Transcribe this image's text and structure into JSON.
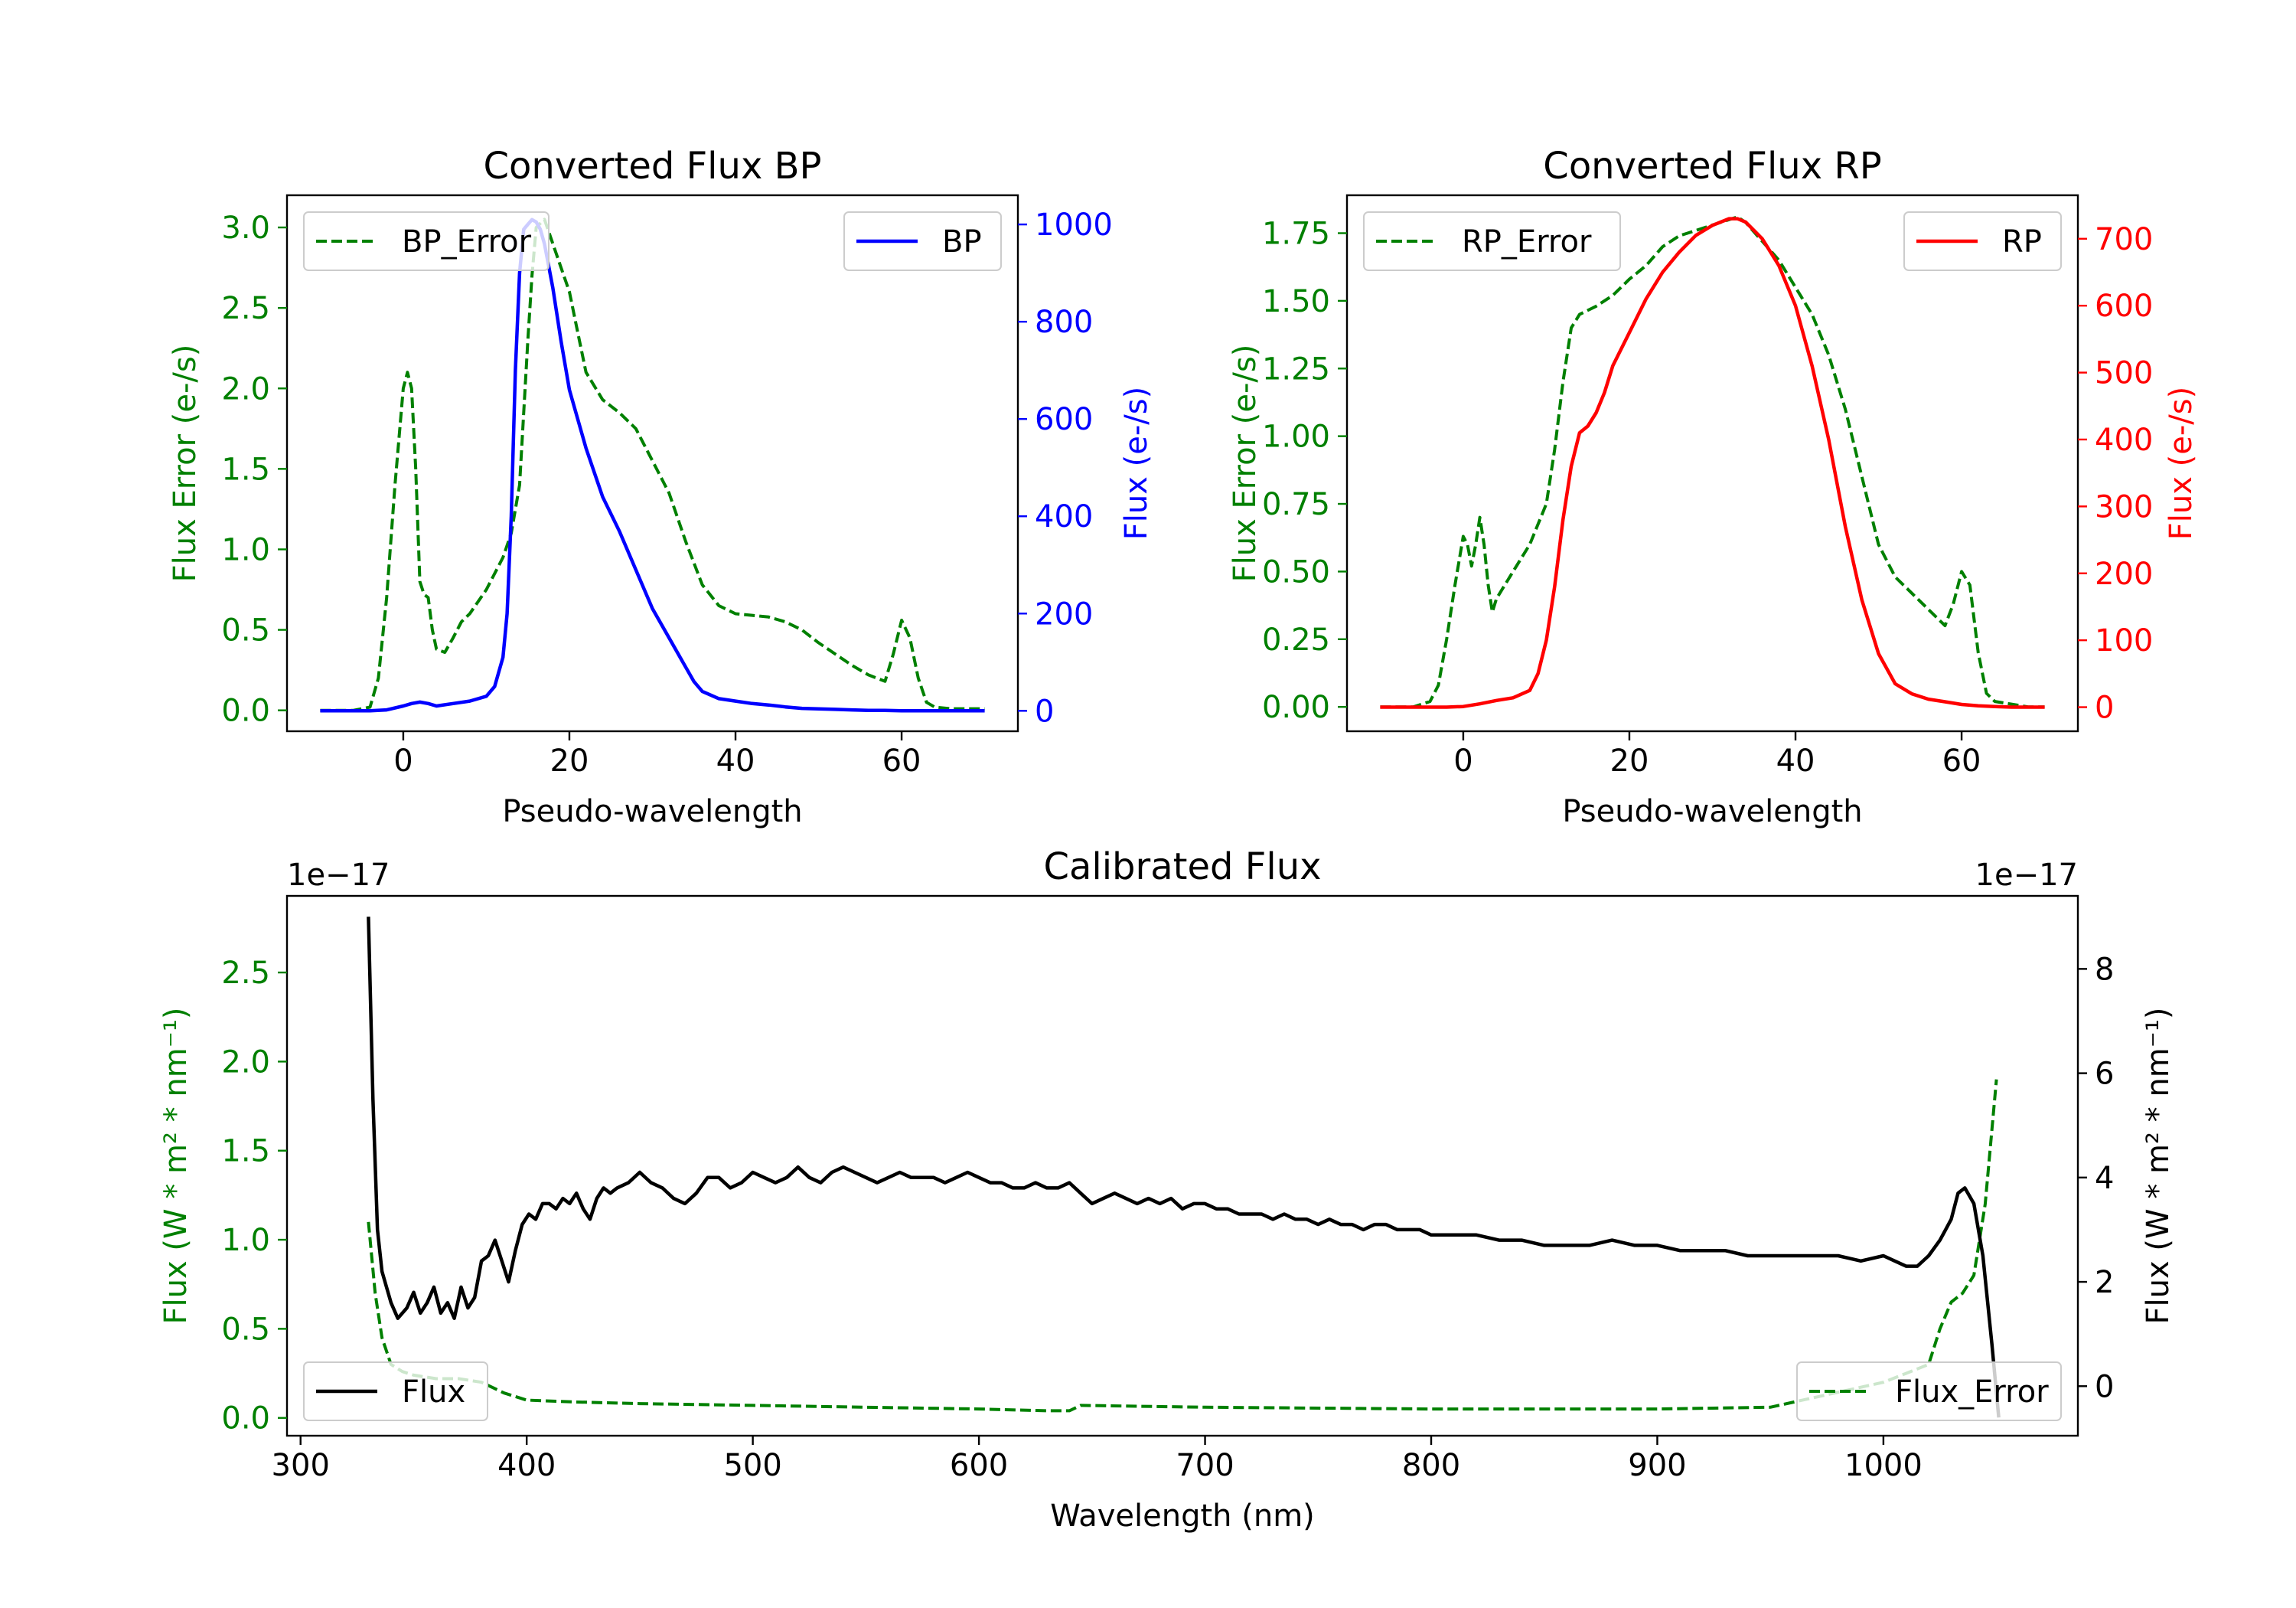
{
  "colors": {
    "green": "#008000",
    "blue": "#0000ff",
    "red": "#ff0000",
    "black": "#000000"
  },
  "chart_data": [
    {
      "id": "bp",
      "type": "line",
      "title": "Converted Flux BP",
      "xlabel": "Pseudo-wavelength",
      "ylabel_left": "Flux Error (e-/s)",
      "ylabel_right": "Flux (e-/s)",
      "xlim": [
        -14,
        74
      ],
      "ylim_left": [
        -0.13,
        3.2
      ],
      "ylim_right": [
        -42,
        1060
      ],
      "xticks": [
        0,
        20,
        40,
        60
      ],
      "yticks_left": [
        0.0,
        0.5,
        1.0,
        1.5,
        2.0,
        2.5,
        3.0
      ],
      "yticks_left_labels": [
        "0.0",
        "0.5",
        "1.0",
        "1.5",
        "2.0",
        "2.5",
        "3.0"
      ],
      "yticks_right": [
        0,
        200,
        400,
        600,
        800,
        1000
      ],
      "yticks_right_labels": [
        "0",
        "200",
        "400",
        "600",
        "800",
        "1000"
      ],
      "legend_left": "BP_Error",
      "legend_right": "BP",
      "series_error": {
        "name": "BP_Error",
        "axis": "left",
        "color": "#008000",
        "style": "dashed",
        "x": [
          -10,
          -8,
          -6,
          -4,
          -3,
          -2,
          -1,
          0,
          0.5,
          1,
          1.5,
          2,
          2.5,
          3,
          3.5,
          4,
          5,
          6,
          7,
          8,
          10,
          12,
          13,
          14,
          15,
          15.5,
          16,
          17,
          18,
          19,
          20,
          21,
          22,
          24,
          26,
          28,
          30,
          32,
          34,
          36,
          38,
          40,
          42,
          44,
          46,
          48,
          50,
          52,
          54,
          56,
          58,
          59,
          60,
          61,
          62,
          63,
          64,
          66,
          68,
          70
        ],
        "y": [
          0.0,
          0.0,
          0.0,
          0.02,
          0.2,
          0.7,
          1.4,
          2.0,
          2.1,
          2.0,
          1.5,
          0.8,
          0.72,
          0.7,
          0.5,
          0.38,
          0.36,
          0.45,
          0.55,
          0.6,
          0.75,
          0.95,
          1.1,
          1.4,
          2.3,
          2.7,
          3.0,
          3.05,
          2.9,
          2.75,
          2.6,
          2.35,
          2.1,
          1.93,
          1.85,
          1.75,
          1.55,
          1.35,
          1.05,
          0.78,
          0.65,
          0.6,
          0.59,
          0.58,
          0.55,
          0.5,
          0.42,
          0.35,
          0.28,
          0.22,
          0.18,
          0.35,
          0.56,
          0.45,
          0.2,
          0.05,
          0.02,
          0.01,
          0.01,
          0.01
        ]
      },
      "series_flux": {
        "name": "BP",
        "axis": "right",
        "color": "#0000ff",
        "style": "solid",
        "x": [
          -10,
          -6,
          -4,
          -2,
          0,
          1,
          2,
          3,
          4,
          6,
          8,
          10,
          11,
          12,
          12.5,
          13,
          13.5,
          14,
          14.5,
          15,
          15.5,
          16,
          16.5,
          17,
          18,
          19,
          20,
          22,
          24,
          26,
          28,
          30,
          32,
          34,
          35,
          36,
          38,
          40,
          42,
          44,
          46,
          48,
          50,
          52,
          54,
          56,
          58,
          60,
          62,
          64,
          66,
          68,
          70
        ],
        "y": [
          0,
          0,
          0,
          2,
          10,
          15,
          18,
          15,
          10,
          15,
          20,
          30,
          50,
          110,
          200,
          400,
          700,
          900,
          990,
          1000,
          1010,
          1005,
          990,
          960,
          870,
          760,
          660,
          540,
          440,
          370,
          290,
          210,
          150,
          90,
          60,
          40,
          25,
          20,
          15,
          12,
          8,
          5,
          4,
          3,
          2,
          1,
          1,
          0,
          0,
          0,
          0,
          0,
          0
        ]
      }
    },
    {
      "id": "rp",
      "type": "line",
      "title": "Converted Flux RP",
      "xlabel": "Pseudo-wavelength",
      "ylabel_left": "Flux Error (e-/s)",
      "ylabel_right": "Flux (e-/s)",
      "xlim": [
        -14,
        74
      ],
      "ylim_left": [
        -0.09,
        1.89
      ],
      "ylim_right": [
        -36,
        765
      ],
      "xticks": [
        0,
        20,
        40,
        60
      ],
      "yticks_left": [
        0.0,
        0.25,
        0.5,
        0.75,
        1.0,
        1.25,
        1.5,
        1.75
      ],
      "yticks_left_labels": [
        "0.00",
        "0.25",
        "0.50",
        "0.75",
        "1.00",
        "1.25",
        "1.50",
        "1.75"
      ],
      "yticks_right": [
        0,
        100,
        200,
        300,
        400,
        500,
        600,
        700
      ],
      "yticks_right_labels": [
        "0",
        "100",
        "200",
        "300",
        "400",
        "500",
        "600",
        "700"
      ],
      "legend_left": "RP_Error",
      "legend_right": "RP",
      "series_error": {
        "name": "RP_Error",
        "axis": "left",
        "color": "#008000",
        "style": "dashed",
        "x": [
          -10,
          -6,
          -4,
          -3,
          -2,
          -1,
          0,
          0.5,
          1,
          1.5,
          2,
          2.5,
          3,
          3.5,
          4,
          5,
          6,
          8,
          10,
          11,
          12,
          13,
          14,
          16,
          18,
          20,
          22,
          24,
          26,
          28,
          30,
          32,
          33,
          34,
          36,
          38,
          40,
          42,
          44,
          46,
          48,
          50,
          52,
          54,
          56,
          57,
          58,
          59,
          60,
          61,
          62,
          63,
          64,
          66,
          68,
          70
        ],
        "y": [
          0.0,
          0.0,
          0.02,
          0.08,
          0.25,
          0.45,
          0.63,
          0.6,
          0.52,
          0.6,
          0.7,
          0.6,
          0.45,
          0.35,
          0.4,
          0.45,
          0.5,
          0.6,
          0.75,
          0.95,
          1.2,
          1.4,
          1.45,
          1.48,
          1.52,
          1.58,
          1.63,
          1.7,
          1.74,
          1.76,
          1.78,
          1.8,
          1.81,
          1.79,
          1.72,
          1.65,
          1.55,
          1.45,
          1.3,
          1.1,
          0.85,
          0.6,
          0.48,
          0.42,
          0.36,
          0.33,
          0.3,
          0.38,
          0.5,
          0.45,
          0.2,
          0.05,
          0.02,
          0.01,
          0.0,
          0.0
        ]
      },
      "series_flux": {
        "name": "RP",
        "axis": "right",
        "color": "#ff0000",
        "style": "solid",
        "x": [
          -10,
          -6,
          -4,
          -2,
          0,
          2,
          4,
          6,
          8,
          9,
          10,
          11,
          12,
          13,
          14,
          15,
          16,
          17,
          18,
          20,
          22,
          24,
          26,
          28,
          30,
          32,
          33,
          34,
          36,
          38,
          40,
          42,
          44,
          46,
          48,
          50,
          52,
          54,
          56,
          58,
          60,
          62,
          64,
          66,
          68,
          70
        ],
        "y": [
          0,
          0,
          0,
          0,
          1,
          5,
          10,
          14,
          25,
          50,
          100,
          180,
          280,
          360,
          410,
          420,
          440,
          470,
          510,
          560,
          610,
          650,
          680,
          705,
          720,
          730,
          730,
          725,
          700,
          660,
          600,
          510,
          400,
          270,
          160,
          80,
          35,
          20,
          12,
          8,
          4,
          2,
          1,
          0,
          0,
          0
        ]
      }
    },
    {
      "id": "cal",
      "type": "line",
      "title": "Calibrated Flux",
      "xlabel": "Wavelength (nm)",
      "ylabel_left": "Flux (W * m² * nm⁻¹)",
      "ylabel_right": "Flux (W * m² * nm⁻¹)",
      "offset_left": "1e−17",
      "offset_right": "1e−17",
      "xlim": [
        294,
        1086
      ],
      "ylim_left": [
        -0.1,
        2.93
      ],
      "ylim_right": [
        -0.95,
        9.4
      ],
      "xticks": [
        300,
        400,
        500,
        600,
        700,
        800,
        900,
        1000
      ],
      "yticks_left": [
        0.0,
        0.5,
        1.0,
        1.5,
        2.0,
        2.5
      ],
      "yticks_left_labels": [
        "0.0",
        "0.5",
        "1.0",
        "1.5",
        "2.0",
        "2.5"
      ],
      "yticks_right": [
        0,
        2,
        4,
        6,
        8
      ],
      "yticks_right_labels": [
        "0",
        "2",
        "4",
        "6",
        "8"
      ],
      "legend_left": "Flux",
      "legend_right": "Flux_Error",
      "series_error": {
        "name": "Flux_Error",
        "axis": "left",
        "color": "#008000",
        "style": "dashed",
        "x": [
          330,
          333,
          336,
          340,
          345,
          350,
          360,
          370,
          380,
          390,
          400,
          420,
          450,
          500,
          550,
          600,
          630,
          640,
          645,
          700,
          800,
          900,
          950,
          1000,
          1010,
          1020,
          1025,
          1030,
          1035,
          1040,
          1045,
          1050
        ],
        "y": [
          1.1,
          0.7,
          0.45,
          0.3,
          0.26,
          0.24,
          0.22,
          0.22,
          0.2,
          0.14,
          0.1,
          0.09,
          0.08,
          0.07,
          0.06,
          0.05,
          0.04,
          0.04,
          0.07,
          0.06,
          0.05,
          0.05,
          0.06,
          0.2,
          0.25,
          0.3,
          0.5,
          0.65,
          0.7,
          0.8,
          1.2,
          1.9
        ]
      },
      "series_flux": {
        "name": "Flux",
        "axis": "right",
        "color": "#000000",
        "style": "solid",
        "x": [
          330,
          332,
          334,
          336,
          338,
          340,
          343,
          347,
          350,
          353,
          356,
          359,
          362,
          365,
          368,
          371,
          374,
          377,
          380,
          383,
          386,
          389,
          392,
          395,
          398,
          401,
          404,
          407,
          410,
          413,
          416,
          419,
          422,
          425,
          428,
          431,
          434,
          437,
          440,
          445,
          450,
          455,
          460,
          465,
          470,
          475,
          480,
          485,
          490,
          495,
          500,
          505,
          510,
          515,
          520,
          525,
          530,
          535,
          540,
          545,
          550,
          555,
          560,
          565,
          570,
          575,
          580,
          585,
          590,
          595,
          600,
          605,
          610,
          615,
          620,
          625,
          630,
          635,
          640,
          645,
          650,
          655,
          660,
          665,
          670,
          675,
          680,
          685,
          690,
          695,
          700,
          705,
          710,
          715,
          720,
          725,
          730,
          735,
          740,
          745,
          750,
          755,
          760,
          765,
          770,
          775,
          780,
          785,
          790,
          795,
          800,
          810,
          820,
          830,
          840,
          850,
          860,
          870,
          880,
          890,
          900,
          910,
          920,
          930,
          940,
          950,
          960,
          970,
          980,
          990,
          1000,
          1005,
          1010,
          1015,
          1020,
          1025,
          1030,
          1033,
          1036,
          1040,
          1044,
          1048,
          1051
        ],
        "y": [
          9.0,
          5.5,
          3.0,
          2.2,
          1.9,
          1.6,
          1.3,
          1.5,
          1.8,
          1.4,
          1.6,
          1.9,
          1.4,
          1.6,
          1.3,
          1.9,
          1.5,
          1.7,
          2.4,
          2.5,
          2.8,
          2.4,
          2.0,
          2.6,
          3.1,
          3.3,
          3.2,
          3.5,
          3.5,
          3.4,
          3.6,
          3.5,
          3.7,
          3.4,
          3.2,
          3.6,
          3.8,
          3.7,
          3.8,
          3.9,
          4.1,
          3.9,
          3.8,
          3.6,
          3.5,
          3.7,
          4.0,
          4.0,
          3.8,
          3.9,
          4.1,
          4.0,
          3.9,
          4.0,
          4.2,
          4.0,
          3.9,
          4.1,
          4.2,
          4.1,
          4.0,
          3.9,
          4.0,
          4.1,
          4.0,
          4.0,
          4.0,
          3.9,
          4.0,
          4.1,
          4.0,
          3.9,
          3.9,
          3.8,
          3.8,
          3.9,
          3.8,
          3.8,
          3.9,
          3.7,
          3.5,
          3.6,
          3.7,
          3.6,
          3.5,
          3.6,
          3.5,
          3.6,
          3.4,
          3.5,
          3.5,
          3.4,
          3.4,
          3.3,
          3.3,
          3.3,
          3.2,
          3.3,
          3.2,
          3.2,
          3.1,
          3.2,
          3.1,
          3.1,
          3.0,
          3.1,
          3.1,
          3.0,
          3.0,
          3.0,
          2.9,
          2.9,
          2.9,
          2.8,
          2.8,
          2.7,
          2.7,
          2.7,
          2.8,
          2.7,
          2.7,
          2.6,
          2.6,
          2.6,
          2.5,
          2.5,
          2.5,
          2.5,
          2.5,
          2.4,
          2.5,
          2.4,
          2.3,
          2.3,
          2.5,
          2.8,
          3.2,
          3.7,
          3.8,
          3.5,
          2.5,
          0.8,
          -0.6
        ]
      }
    }
  ]
}
